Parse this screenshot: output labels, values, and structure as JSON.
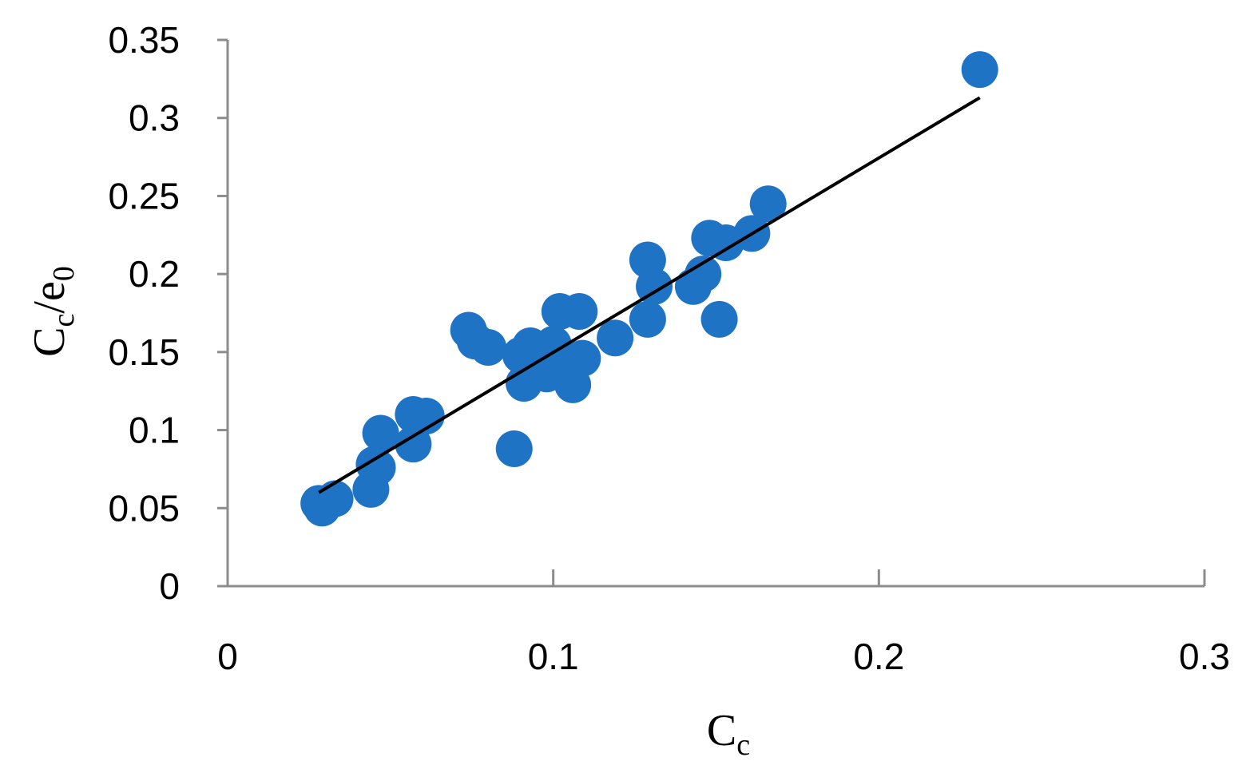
{
  "chart_data": {
    "type": "scatter",
    "title": "",
    "xlabel": {
      "main": "C",
      "sub": "c"
    },
    "ylabel": {
      "main": "C",
      "sub": "c",
      "sep": "/e",
      "sub2": "0"
    },
    "xlim": [
      0,
      0.3
    ],
    "ylim": [
      0,
      0.35
    ],
    "xticks": [
      "0",
      "0.1",
      "0.2",
      "0.3"
    ],
    "yticks": [
      "0",
      "0.05",
      "0.1",
      "0.15",
      "0.2",
      "0.25",
      "0.3",
      "0.35"
    ],
    "xtick_values": [
      0,
      0.1,
      0.2,
      0.3
    ],
    "ytick_values": [
      0,
      0.05,
      0.1,
      0.15,
      0.2,
      0.25,
      0.3,
      0.35
    ],
    "grid": false,
    "legend": "none",
    "point_color": "#1f73c4",
    "axis_color": "#8c8c8c",
    "trendline_color": "#000000",
    "series": [
      {
        "points": [
          [
            0.028,
            0.053
          ],
          [
            0.029,
            0.05
          ],
          [
            0.033,
            0.056
          ],
          [
            0.044,
            0.062
          ],
          [
            0.046,
            0.076
          ],
          [
            0.045,
            0.078
          ],
          [
            0.047,
            0.098
          ],
          [
            0.057,
            0.091
          ],
          [
            0.057,
            0.11
          ],
          [
            0.061,
            0.109
          ],
          [
            0.074,
            0.164
          ],
          [
            0.076,
            0.157
          ],
          [
            0.08,
            0.153
          ],
          [
            0.088,
            0.088
          ],
          [
            0.09,
            0.148
          ],
          [
            0.091,
            0.13
          ],
          [
            0.093,
            0.154
          ],
          [
            0.098,
            0.136
          ],
          [
            0.1,
            0.155
          ],
          [
            0.102,
            0.176
          ],
          [
            0.104,
            0.141
          ],
          [
            0.106,
            0.129
          ],
          [
            0.108,
            0.176
          ],
          [
            0.109,
            0.146
          ],
          [
            0.119,
            0.159
          ],
          [
            0.129,
            0.209
          ],
          [
            0.129,
            0.171
          ],
          [
            0.131,
            0.192
          ],
          [
            0.143,
            0.192
          ],
          [
            0.146,
            0.2
          ],
          [
            0.148,
            0.223
          ],
          [
            0.151,
            0.171
          ],
          [
            0.153,
            0.22
          ],
          [
            0.161,
            0.226
          ],
          [
            0.166,
            0.245
          ],
          [
            0.231,
            0.331
          ]
        ]
      }
    ],
    "trendline": {
      "x": [
        0.028,
        0.231
      ],
      "y": [
        0.06,
        0.313
      ]
    }
  }
}
